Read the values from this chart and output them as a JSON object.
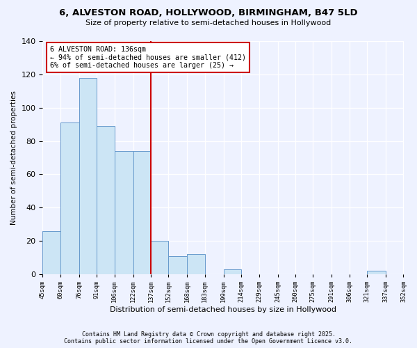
{
  "title": "6, ALVESTON ROAD, HOLLYWOOD, BIRMINGHAM, B47 5LD",
  "subtitle": "Size of property relative to semi-detached houses in Hollywood",
  "xlabel": "Distribution of semi-detached houses by size in Hollywood",
  "ylabel": "Number of semi-detached properties",
  "bar_edges": [
    45,
    60,
    76,
    91,
    106,
    122,
    137,
    152,
    168,
    183,
    199,
    214,
    229,
    245,
    260,
    275,
    291,
    306,
    321,
    337,
    352
  ],
  "bar_heights": [
    26,
    91,
    118,
    89,
    74,
    74,
    20,
    11,
    12,
    0,
    3,
    0,
    0,
    0,
    0,
    0,
    0,
    0,
    2,
    0
  ],
  "bar_color": "#cce5f5",
  "bar_edgecolor": "#6699cc",
  "vline_x": 137,
  "vline_color": "#cc0000",
  "annotation_title": "6 ALVESTON ROAD: 136sqm",
  "annotation_line1": "← 94% of semi-detached houses are smaller (412)",
  "annotation_line2": "6% of semi-detached houses are larger (25) →",
  "annotation_box_edgecolor": "#cc0000",
  "ylim": [
    0,
    140
  ],
  "yticks": [
    0,
    20,
    40,
    60,
    80,
    100,
    120,
    140
  ],
  "tick_labels": [
    "45sqm",
    "60sqm",
    "76sqm",
    "91sqm",
    "106sqm",
    "122sqm",
    "137sqm",
    "152sqm",
    "168sqm",
    "183sqm",
    "199sqm",
    "214sqm",
    "229sqm",
    "245sqm",
    "260sqm",
    "275sqm",
    "291sqm",
    "306sqm",
    "321sqm",
    "337sqm",
    "352sqm"
  ],
  "footer_line1": "Contains HM Land Registry data © Crown copyright and database right 2025.",
  "footer_line2": "Contains public sector information licensed under the Open Government Licence v3.0.",
  "background_color": "#eef2ff",
  "plot_background": "#eef2ff"
}
